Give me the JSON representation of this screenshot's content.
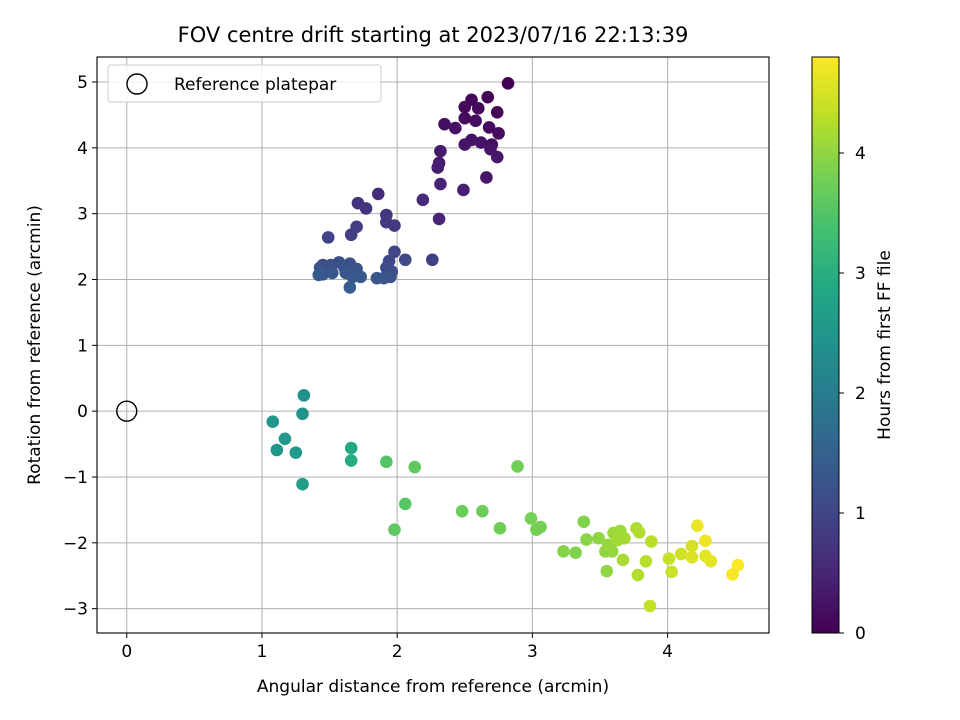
{
  "chart_data": {
    "type": "scatter",
    "title": "FOV centre drift starting at 2023/07/16 22:13:39",
    "xlabel": "Angular distance from reference (arcmin)",
    "ylabel": "Rotation from reference (arcmin)",
    "xlim": [
      -0.22,
      4.75
    ],
    "ylim": [
      -3.37,
      5.38
    ],
    "xticks": [
      0,
      1,
      2,
      3,
      4
    ],
    "yticks": [
      -3,
      -2,
      -1,
      0,
      1,
      2,
      3,
      4,
      5
    ],
    "grid": true,
    "legend": {
      "position": "top-left",
      "entries": [
        "Reference platepar"
      ]
    },
    "reference_point": {
      "x": 0,
      "y": 0,
      "label": "Reference platepar"
    },
    "colorbar": {
      "label": "Hours from first FF file",
      "colormap": "viridis",
      "range": [
        0,
        4.8
      ],
      "ticks": [
        0,
        1,
        2,
        3,
        4
      ]
    },
    "points": [
      {
        "x": 2.82,
        "y": 4.98,
        "c": 0.0
      },
      {
        "x": 2.67,
        "y": 4.77,
        "c": 0.05
      },
      {
        "x": 2.55,
        "y": 4.73,
        "c": 0.08
      },
      {
        "x": 2.5,
        "y": 4.62,
        "c": 0.1
      },
      {
        "x": 2.6,
        "y": 4.6,
        "c": 0.12
      },
      {
        "x": 2.74,
        "y": 4.54,
        "c": 0.07
      },
      {
        "x": 2.5,
        "y": 4.45,
        "c": 0.15
      },
      {
        "x": 2.58,
        "y": 4.41,
        "c": 0.18
      },
      {
        "x": 2.35,
        "y": 4.36,
        "c": 0.2
      },
      {
        "x": 2.43,
        "y": 4.3,
        "c": 0.22
      },
      {
        "x": 2.68,
        "y": 4.31,
        "c": 0.14
      },
      {
        "x": 2.75,
        "y": 4.22,
        "c": 0.16
      },
      {
        "x": 2.55,
        "y": 4.12,
        "c": 0.24
      },
      {
        "x": 2.62,
        "y": 4.08,
        "c": 0.26
      },
      {
        "x": 2.5,
        "y": 4.05,
        "c": 0.28
      },
      {
        "x": 2.7,
        "y": 4.05,
        "c": 0.2
      },
      {
        "x": 2.69,
        "y": 3.98,
        "c": 0.25
      },
      {
        "x": 2.74,
        "y": 3.86,
        "c": 0.3
      },
      {
        "x": 2.32,
        "y": 3.95,
        "c": 0.35
      },
      {
        "x": 2.31,
        "y": 3.77,
        "c": 0.38
      },
      {
        "x": 2.3,
        "y": 3.7,
        "c": 0.4
      },
      {
        "x": 2.66,
        "y": 3.55,
        "c": 0.32
      },
      {
        "x": 2.32,
        "y": 3.45,
        "c": 0.45
      },
      {
        "x": 2.49,
        "y": 3.36,
        "c": 0.42
      },
      {
        "x": 1.86,
        "y": 3.3,
        "c": 0.6
      },
      {
        "x": 2.19,
        "y": 3.21,
        "c": 0.55
      },
      {
        "x": 1.71,
        "y": 3.16,
        "c": 0.7
      },
      {
        "x": 1.77,
        "y": 3.08,
        "c": 0.72
      },
      {
        "x": 1.92,
        "y": 2.98,
        "c": 0.75
      },
      {
        "x": 2.31,
        "y": 2.92,
        "c": 0.5
      },
      {
        "x": 1.92,
        "y": 2.87,
        "c": 0.8
      },
      {
        "x": 1.98,
        "y": 2.82,
        "c": 0.78
      },
      {
        "x": 1.7,
        "y": 2.8,
        "c": 0.85
      },
      {
        "x": 1.66,
        "y": 2.68,
        "c": 0.88
      },
      {
        "x": 1.49,
        "y": 2.64,
        "c": 0.95
      },
      {
        "x": 1.98,
        "y": 2.42,
        "c": 1.0
      },
      {
        "x": 2.06,
        "y": 2.3,
        "c": 1.05
      },
      {
        "x": 2.26,
        "y": 2.3,
        "c": 0.9
      },
      {
        "x": 1.94,
        "y": 2.28,
        "c": 1.02
      },
      {
        "x": 1.45,
        "y": 2.22,
        "c": 1.1
      },
      {
        "x": 1.51,
        "y": 2.22,
        "c": 1.12
      },
      {
        "x": 1.57,
        "y": 2.26,
        "c": 1.15
      },
      {
        "x": 1.65,
        "y": 2.24,
        "c": 1.18
      },
      {
        "x": 1.43,
        "y": 2.18,
        "c": 1.2
      },
      {
        "x": 1.61,
        "y": 2.18,
        "c": 1.22
      },
      {
        "x": 1.7,
        "y": 2.16,
        "c": 1.25
      },
      {
        "x": 1.92,
        "y": 2.18,
        "c": 1.08
      },
      {
        "x": 1.96,
        "y": 2.12,
        "c": 1.1
      },
      {
        "x": 1.45,
        "y": 2.08,
        "c": 1.28
      },
      {
        "x": 1.52,
        "y": 2.1,
        "c": 1.3
      },
      {
        "x": 1.62,
        "y": 2.1,
        "c": 1.32
      },
      {
        "x": 1.67,
        "y": 2.04,
        "c": 1.34
      },
      {
        "x": 1.73,
        "y": 2.04,
        "c": 1.36
      },
      {
        "x": 1.85,
        "y": 2.02,
        "c": 1.3
      },
      {
        "x": 1.9,
        "y": 2.02,
        "c": 1.28
      },
      {
        "x": 1.95,
        "y": 2.04,
        "c": 1.25
      },
      {
        "x": 1.42,
        "y": 2.07,
        "c": 1.35
      },
      {
        "x": 1.65,
        "y": 1.88,
        "c": 1.4
      },
      {
        "x": 1.31,
        "y": 0.24,
        "c": 2.4
      },
      {
        "x": 1.3,
        "y": -0.04,
        "c": 2.45
      },
      {
        "x": 1.08,
        "y": -0.16,
        "c": 2.5
      },
      {
        "x": 1.17,
        "y": -0.42,
        "c": 2.55
      },
      {
        "x": 1.11,
        "y": -0.59,
        "c": 2.52
      },
      {
        "x": 1.25,
        "y": -0.63,
        "c": 2.6
      },
      {
        "x": 1.3,
        "y": -1.11,
        "c": 2.65
      },
      {
        "x": 1.66,
        "y": -0.56,
        "c": 2.9
      },
      {
        "x": 1.66,
        "y": -0.75,
        "c": 2.95
      },
      {
        "x": 1.92,
        "y": -0.77,
        "c": 3.5
      },
      {
        "x": 2.13,
        "y": -0.85,
        "c": 3.6
      },
      {
        "x": 2.06,
        "y": -1.41,
        "c": 3.55
      },
      {
        "x": 1.98,
        "y": -1.8,
        "c": 3.6
      },
      {
        "x": 2.89,
        "y": -0.84,
        "c": 3.75
      },
      {
        "x": 2.48,
        "y": -1.52,
        "c": 3.7
      },
      {
        "x": 2.63,
        "y": -1.52,
        "c": 3.72
      },
      {
        "x": 2.76,
        "y": -1.78,
        "c": 3.74
      },
      {
        "x": 2.99,
        "y": -1.63,
        "c": 3.8
      },
      {
        "x": 3.03,
        "y": -1.8,
        "c": 3.82
      },
      {
        "x": 3.06,
        "y": -1.76,
        "c": 3.78
      },
      {
        "x": 3.38,
        "y": -1.68,
        "c": 3.9
      },
      {
        "x": 3.23,
        "y": -2.13,
        "c": 3.92
      },
      {
        "x": 3.32,
        "y": -2.15,
        "c": 3.88
      },
      {
        "x": 3.4,
        "y": -1.95,
        "c": 3.95
      },
      {
        "x": 3.49,
        "y": -1.93,
        "c": 3.98
      },
      {
        "x": 3.54,
        "y": -2.13,
        "c": 4.0
      },
      {
        "x": 3.59,
        "y": -2.13,
        "c": 4.02
      },
      {
        "x": 3.56,
        "y": -2.03,
        "c": 4.05
      },
      {
        "x": 3.6,
        "y": -1.85,
        "c": 4.08
      },
      {
        "x": 3.65,
        "y": -1.82,
        "c": 4.1
      },
      {
        "x": 3.63,
        "y": -1.96,
        "c": 4.12
      },
      {
        "x": 3.68,
        "y": -1.93,
        "c": 4.15
      },
      {
        "x": 3.55,
        "y": -2.43,
        "c": 4.0
      },
      {
        "x": 3.67,
        "y": -2.26,
        "c": 4.18
      },
      {
        "x": 3.77,
        "y": -1.78,
        "c": 4.2
      },
      {
        "x": 3.79,
        "y": -1.84,
        "c": 4.22
      },
      {
        "x": 3.78,
        "y": -2.49,
        "c": 4.25
      },
      {
        "x": 3.84,
        "y": -2.28,
        "c": 4.28
      },
      {
        "x": 3.88,
        "y": -1.98,
        "c": 4.3
      },
      {
        "x": 3.87,
        "y": -2.96,
        "c": 4.35
      },
      {
        "x": 4.01,
        "y": -2.24,
        "c": 4.4
      },
      {
        "x": 4.03,
        "y": -2.44,
        "c": 4.42
      },
      {
        "x": 4.1,
        "y": -2.17,
        "c": 4.45
      },
      {
        "x": 4.18,
        "y": -2.05,
        "c": 4.5
      },
      {
        "x": 4.18,
        "y": -2.22,
        "c": 4.55
      },
      {
        "x": 4.22,
        "y": -1.74,
        "c": 4.65
      },
      {
        "x": 4.28,
        "y": -1.97,
        "c": 4.7
      },
      {
        "x": 4.28,
        "y": -2.2,
        "c": 4.6
      },
      {
        "x": 4.32,
        "y": -2.28,
        "c": 4.62
      },
      {
        "x": 4.52,
        "y": -2.34,
        "c": 4.78
      },
      {
        "x": 4.48,
        "y": -2.48,
        "c": 4.75
      }
    ]
  }
}
